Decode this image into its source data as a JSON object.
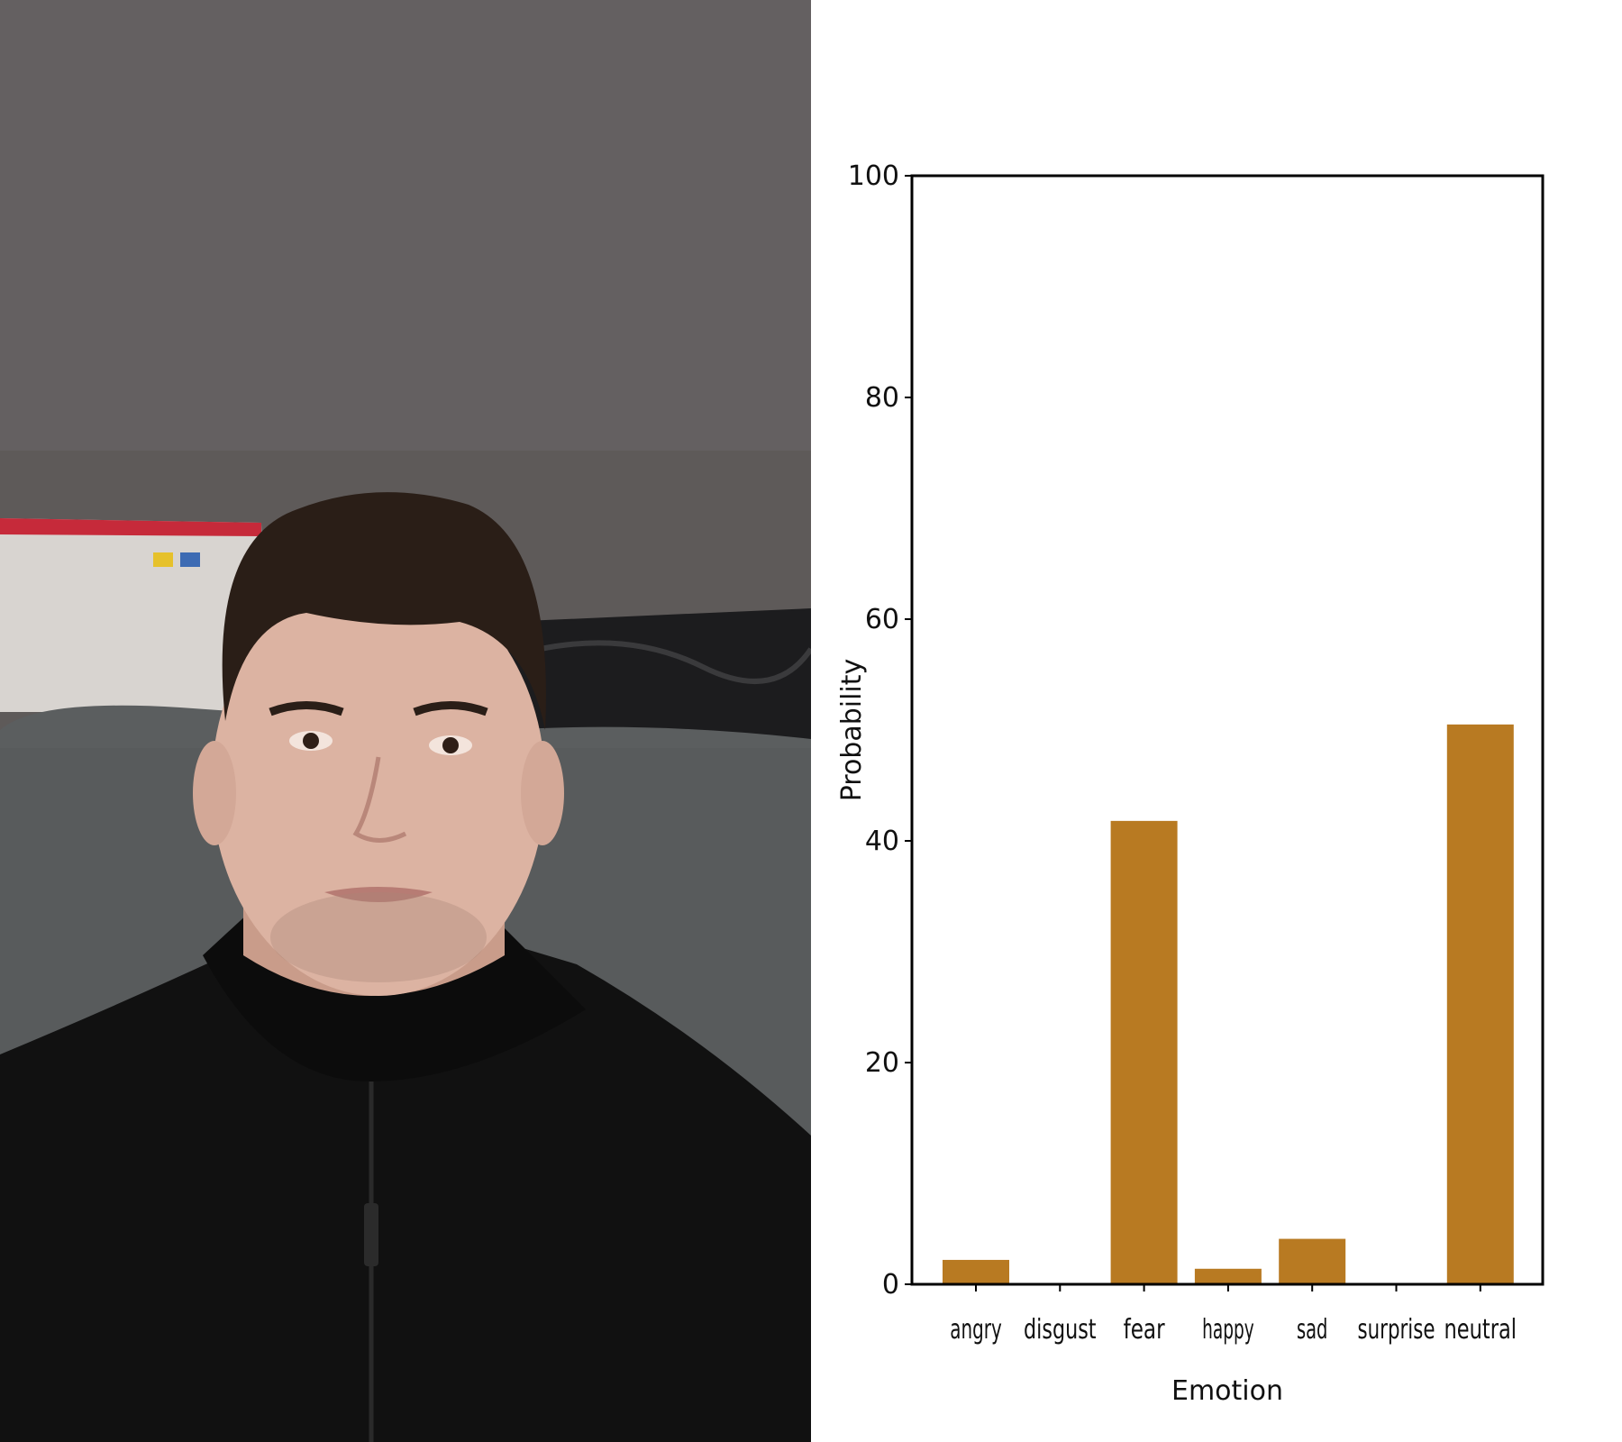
{
  "photo": {
    "subject": "selfie of a man with short dark hair wearing a black zip-up sweater, sitting on a grey couch",
    "colors": {
      "wall": "#5e5a59",
      "couch": "#5b5e5f",
      "sweater": "#111111",
      "hair": "#2a1e17",
      "skin": "#dcb3a2"
    }
  },
  "chart_data": {
    "type": "bar",
    "title": "",
    "xlabel": "Emotion",
    "ylabel": "Probability",
    "categories": [
      "angry",
      "disgust",
      "fear",
      "happy",
      "sad",
      "surprise",
      "neutral"
    ],
    "values": [
      2.2,
      0,
      41.8,
      1.4,
      4.1,
      0,
      50.5
    ],
    "ylim": [
      0,
      100
    ],
    "yticks": [
      0,
      20,
      40,
      60,
      80,
      100
    ],
    "ytick_labels": [
      "0",
      "20",
      "40",
      "60",
      "80",
      "100"
    ],
    "grid": false,
    "legend": "none",
    "bar_color": "#b87a22"
  }
}
